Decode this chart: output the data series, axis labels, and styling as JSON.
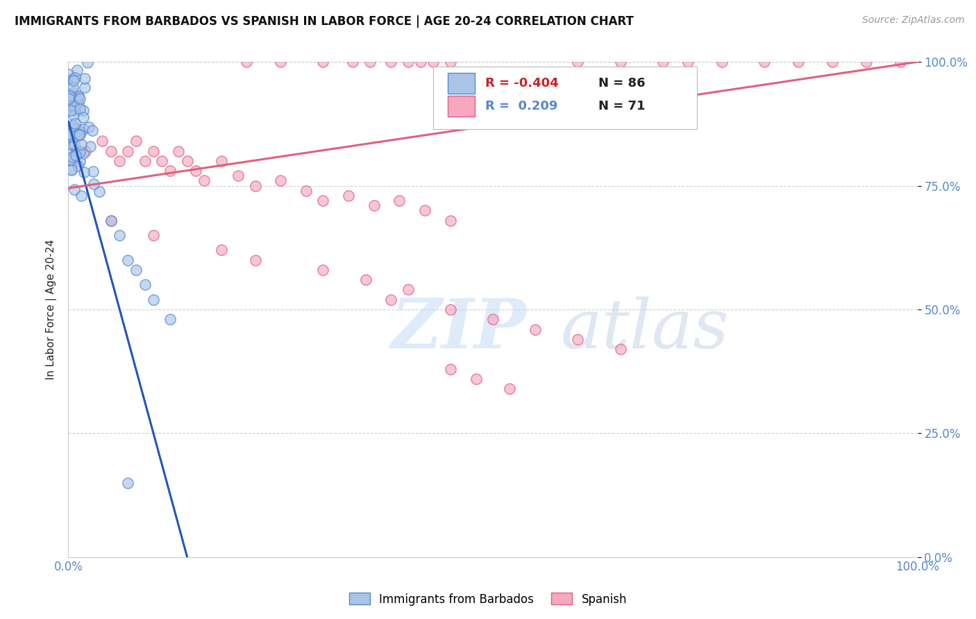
{
  "title": "IMMIGRANTS FROM BARBADOS VS SPANISH IN LABOR FORCE | AGE 20-24 CORRELATION CHART",
  "source_text": "Source: ZipAtlas.com",
  "ylabel": "In Labor Force | Age 20-24",
  "legend_label1": "Immigrants from Barbados",
  "legend_label2": "Spanish",
  "barbados_color": "#aac4e8",
  "spanish_color": "#f5a8c0",
  "barbados_edge": "#5588cc",
  "spanish_edge": "#e06080",
  "trend_blue": "#2255bb",
  "trend_pink": "#e06080",
  "trend_dashed_color": "#aaaacc",
  "background": "#ffffff",
  "grid_color": "#cccccc",
  "legend_r1_color": "#cc2222",
  "legend_r2_color": "#5588cc",
  "legend_n_color": "#222222",
  "source_color": "#999999",
  "ylabel_color": "#222222",
  "tick_color": "#5588cc",
  "marker_size": 120,
  "marker_alpha": 0.65,
  "marker_lw": 1.2,
  "grid_lw": 0.8,
  "trend_lw": 2.2,
  "title_fontsize": 12,
  "source_fontsize": 10,
  "tick_fontsize": 12,
  "legend_fontsize": 13,
  "watermark_zip_color": "#c8dff5",
  "watermark_atlas_color": "#c0d0e8"
}
